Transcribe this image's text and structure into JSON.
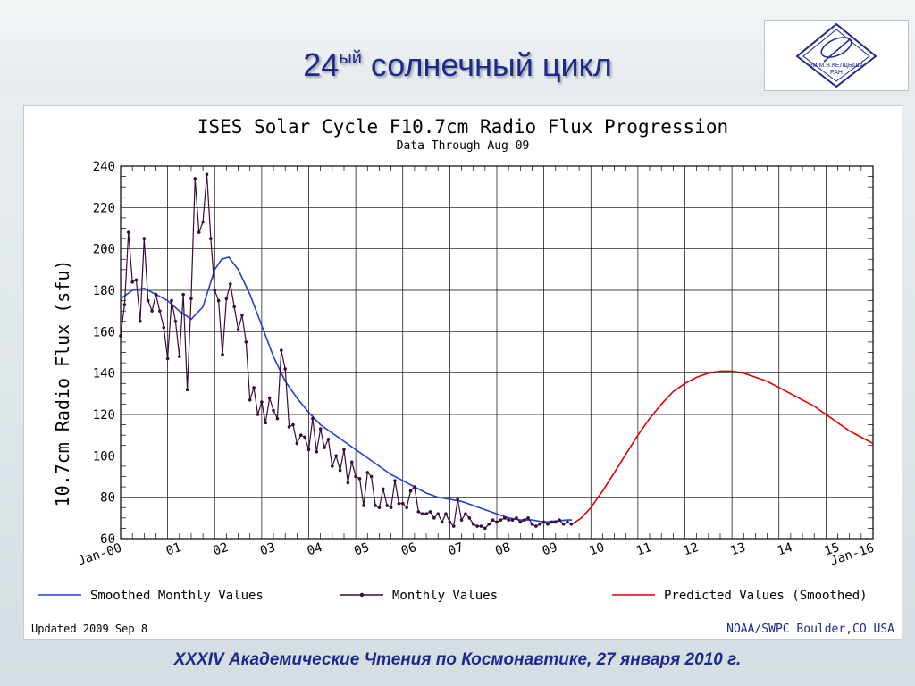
{
  "slide": {
    "title_main": "24",
    "title_sup": "ый",
    "title_rest": " солнечный цикл",
    "footer": "XXXIV  Академические Чтения по Космонавтике,  27 января 2010 г.",
    "logo_text": "им.М.В.КЕЛДЫША",
    "logo_text2": "РАН"
  },
  "chart_data": {
    "type": "line",
    "title": "ISES Solar Cycle F10.7cm Radio Flux Progression",
    "subtitle": "Data Through Aug 09",
    "ylabel": "10.7cm Radio Flux (sfu)",
    "xlabel": "",
    "ylim": [
      60,
      240
    ],
    "xlim": [
      2000,
      2016
    ],
    "y_ticks": [
      60,
      80,
      100,
      120,
      140,
      160,
      180,
      200,
      220,
      240
    ],
    "x_tick_labels": [
      "Jan-00",
      "01",
      "02",
      "03",
      "04",
      "05",
      "06",
      "07",
      "08",
      "09",
      "10",
      "11",
      "12",
      "13",
      "14",
      "15",
      "Jan-16"
    ],
    "grid": true,
    "legend_placement": "bottom",
    "updated_text": "Updated 2009 Sep  8",
    "credit_text": "NOAA/SWPC Boulder,CO USA",
    "series": [
      {
        "name": "Smoothed Monthly Values",
        "color": "#1f3fd8",
        "x": [
          2000.0,
          2000.25,
          2000.5,
          2000.75,
          2001.0,
          2001.25,
          2001.5,
          2001.75,
          2002.0,
          2002.15,
          2002.3,
          2002.5,
          2002.75,
          2003.0,
          2003.25,
          2003.5,
          2003.75,
          2004.0,
          2004.25,
          2004.5,
          2004.75,
          2005.0,
          2005.25,
          2005.5,
          2005.75,
          2006.0,
          2006.25,
          2006.5,
          2006.75,
          2007.0,
          2007.25,
          2007.5,
          2007.75,
          2008.0,
          2008.25,
          2008.5,
          2008.75,
          2009.0,
          2009.25,
          2009.5,
          2009.6
        ],
        "y": [
          176,
          180,
          181,
          178,
          175,
          170,
          166,
          172,
          190,
          195,
          196,
          190,
          178,
          163,
          148,
          136,
          128,
          121,
          115,
          111,
          107,
          103,
          99,
          95,
          91,
          88,
          85,
          82,
          80,
          79,
          78,
          76,
          74,
          72,
          70,
          69,
          69,
          68,
          68.5,
          69,
          69
        ]
      },
      {
        "name": "Monthly Values",
        "color": "#3a0a3a",
        "x": [
          2000.0,
          2000.083,
          2000.167,
          2000.25,
          2000.333,
          2000.417,
          2000.5,
          2000.583,
          2000.667,
          2000.75,
          2000.833,
          2000.917,
          2001.0,
          2001.083,
          2001.167,
          2001.25,
          2001.333,
          2001.417,
          2001.5,
          2001.583,
          2001.667,
          2001.75,
          2001.833,
          2001.917,
          2002.0,
          2002.083,
          2002.167,
          2002.25,
          2002.333,
          2002.417,
          2002.5,
          2002.583,
          2002.667,
          2002.75,
          2002.833,
          2002.917,
          2003.0,
          2003.083,
          2003.167,
          2003.25,
          2003.333,
          2003.417,
          2003.5,
          2003.583,
          2003.667,
          2003.75,
          2003.833,
          2003.917,
          2004.0,
          2004.083,
          2004.167,
          2004.25,
          2004.333,
          2004.417,
          2004.5,
          2004.583,
          2004.667,
          2004.75,
          2004.833,
          2004.917,
          2005.0,
          2005.083,
          2005.167,
          2005.25,
          2005.333,
          2005.417,
          2005.5,
          2005.583,
          2005.667,
          2005.75,
          2005.833,
          2005.917,
          2006.0,
          2006.083,
          2006.167,
          2006.25,
          2006.333,
          2006.417,
          2006.5,
          2006.583,
          2006.667,
          2006.75,
          2006.833,
          2006.917,
          2007.0,
          2007.083,
          2007.167,
          2007.25,
          2007.333,
          2007.417,
          2007.5,
          2007.583,
          2007.667,
          2007.75,
          2007.833,
          2007.917,
          2008.0,
          2008.083,
          2008.167,
          2008.25,
          2008.333,
          2008.417,
          2008.5,
          2008.583,
          2008.667,
          2008.75,
          2008.833,
          2008.917,
          2009.0,
          2009.083,
          2009.167,
          2009.25,
          2009.333,
          2009.417,
          2009.5,
          2009.583
        ],
        "y": [
          158,
          173,
          208,
          184,
          185,
          165,
          205,
          175,
          170,
          178,
          170,
          162,
          147,
          175,
          165,
          148,
          178,
          132,
          176,
          234,
          208,
          213,
          236,
          205,
          180,
          175,
          149,
          176,
          183,
          172,
          161,
          168,
          155,
          127,
          133,
          120,
          126,
          116,
          128,
          122,
          118,
          151,
          142,
          114,
          115,
          106,
          110,
          109,
          103,
          118,
          102,
          113,
          104,
          108,
          95,
          100,
          93,
          103,
          87,
          97,
          90,
          89,
          76,
          92,
          90,
          76,
          75,
          84,
          76,
          75,
          88,
          77,
          77,
          75,
          83,
          85,
          73,
          72,
          72,
          73,
          70,
          72,
          68,
          72,
          68,
          66,
          79,
          69,
          72,
          70,
          67,
          66,
          66,
          65,
          67,
          69,
          68,
          69,
          70,
          69,
          69,
          70,
          68,
          69,
          70,
          67,
          66,
          67,
          68,
          67,
          68,
          68,
          69,
          67,
          68,
          67
        ]
      },
      {
        "name": "Predicted Values (Smoothed)",
        "color": "#e00000",
        "x": [
          2009.6,
          2009.8,
          2010.0,
          2010.25,
          2010.5,
          2010.75,
          2011.0,
          2011.25,
          2011.5,
          2011.75,
          2012.0,
          2012.25,
          2012.5,
          2012.75,
          2013.0,
          2013.25,
          2013.5,
          2013.75,
          2014.0,
          2014.25,
          2014.5,
          2014.75,
          2015.0,
          2015.25,
          2015.5,
          2015.75,
          2016.0
        ],
        "y": [
          67,
          70,
          75,
          83,
          92,
          101,
          110,
          118,
          125,
          131,
          135,
          138,
          140,
          141,
          141,
          140,
          138,
          136,
          133,
          130,
          127,
          124,
          120,
          116,
          112,
          109,
          106
        ]
      }
    ]
  }
}
